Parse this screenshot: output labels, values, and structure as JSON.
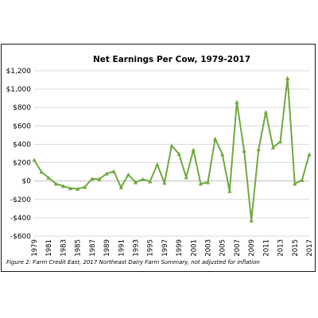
{
  "figure": {
    "caption": "Figure 2: Farm Credit East, 2017 Northeast Dairy Farm Summary, not adjusted for inflation"
  },
  "chart_data": {
    "type": "line",
    "title": "Net Earnings Per Cow, 1979-2017",
    "xlabel": "",
    "ylabel": "",
    "x": [
      1979,
      1980,
      1981,
      1982,
      1983,
      1984,
      1985,
      1986,
      1987,
      1988,
      1989,
      1990,
      1991,
      1992,
      1993,
      1994,
      1995,
      1996,
      1997,
      1998,
      1999,
      2000,
      2001,
      2002,
      2003,
      2004,
      2005,
      2006,
      2007,
      2008,
      2009,
      2010,
      2011,
      2012,
      2013,
      2014,
      2015,
      2016,
      2017
    ],
    "x_tick_labels": [
      "1979",
      "1981",
      "1983",
      "1985",
      "1987",
      "1989",
      "1991",
      "1993",
      "1995",
      "1997",
      "1999",
      "2001",
      "2003",
      "2005",
      "2007",
      "2009",
      "2011",
      "2013",
      "2015",
      "2017"
    ],
    "series": [
      {
        "values": [
          230,
          100,
          35,
          -30,
          -55,
          -80,
          -85,
          -65,
          25,
          20,
          80,
          105,
          -70,
          70,
          -15,
          20,
          -5,
          180,
          -20,
          385,
          295,
          40,
          340,
          -30,
          -15,
          460,
          290,
          -110,
          860,
          330,
          -430,
          345,
          750,
          365,
          430,
          1120,
          -30,
          10,
          290
        ],
        "color": "#70a83e"
      }
    ],
    "ylim": [
      -600,
      1200
    ],
    "y_tick_labels": [
      "$1,200",
      "$1,000",
      "$800",
      "$600",
      "$400",
      "$200",
      "$0",
      "-$200",
      "-$400",
      "-$600"
    ],
    "y_ticks": [
      1200,
      1000,
      800,
      600,
      400,
      200,
      0,
      -200,
      -400,
      -600
    ],
    "grid": true,
    "legend": "none"
  }
}
